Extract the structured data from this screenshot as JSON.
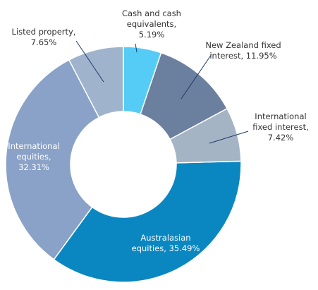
{
  "chart_data": {
    "type": "donut",
    "categories": [
      "Cash and cash equivalents,",
      "New Zealand fixed interest,",
      "International fixed interest,",
      "Australasian equities,",
      "International equities,",
      "Listed property,"
    ],
    "values": [
      5.19,
      11.95,
      7.42,
      35.49,
      32.31,
      7.65
    ],
    "value_labels": [
      "5.19%",
      "11.95%",
      "7.42%",
      "35.49%",
      "32.31%",
      "7.65%"
    ],
    "colors": [
      "#55ccf6",
      "#6b7f9f",
      "#a4b4c4",
      "#0a87c1",
      "#8aa2c7",
      "#a0b3cc"
    ]
  }
}
